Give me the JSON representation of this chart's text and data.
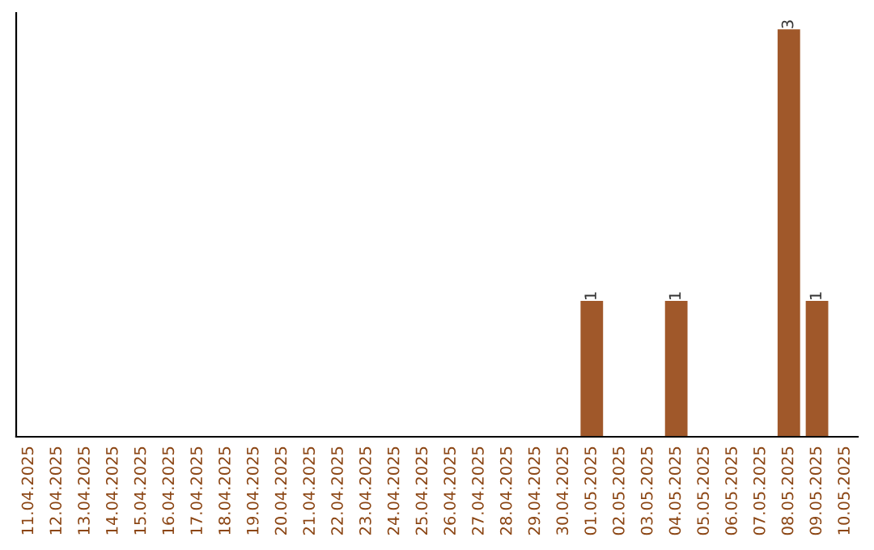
{
  "chart_data": {
    "type": "bar",
    "categories": [
      "11.04.2025",
      "12.04.2025",
      "13.04.2025",
      "14.04.2025",
      "15.04.2025",
      "16.04.2025",
      "17.04.2025",
      "18.04.2025",
      "19.04.2025",
      "20.04.2025",
      "21.04.2025",
      "22.04.2025",
      "23.04.2025",
      "24.04.2025",
      "25.04.2025",
      "26.04.2025",
      "27.04.2025",
      "28.04.2025",
      "29.04.2025",
      "30.04.2025",
      "01.05.2025",
      "02.05.2025",
      "03.05.2025",
      "04.05.2025",
      "05.05.2025",
      "06.05.2025",
      "07.05.2025",
      "08.05.2025",
      "09.05.2025",
      "10.05.2025"
    ],
    "values": [
      null,
      null,
      null,
      null,
      null,
      null,
      null,
      null,
      null,
      null,
      null,
      null,
      null,
      null,
      null,
      null,
      null,
      null,
      null,
      null,
      1,
      null,
      null,
      1,
      null,
      null,
      null,
      3,
      1,
      null
    ],
    "data_labels": true,
    "color": "#a0582a",
    "tick_labels": "x",
    "grid": false,
    "legend": false
  }
}
